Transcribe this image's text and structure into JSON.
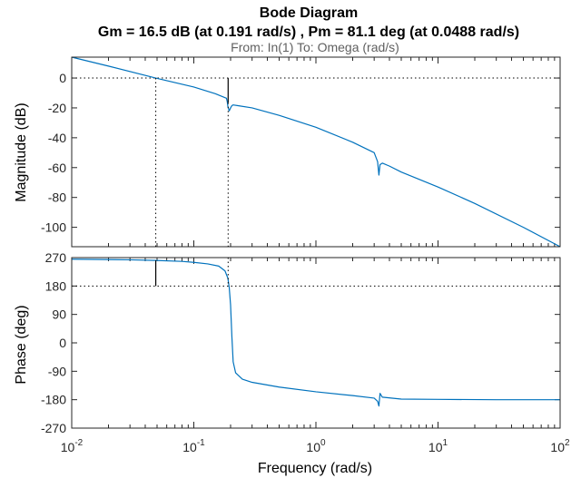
{
  "chart_data": {
    "type": "line",
    "title": "Bode Diagram",
    "subtitle": "Gm = 16.5 dB (at 0.191 rad/s) ,  Pm = 81.1 deg (at 0.0488 rad/s)",
    "io_label": "From: In(1)  To: Omega (rad/s)",
    "xlabel": "Frequency  (rad/s)",
    "x_scale": "log",
    "xlim": [
      0.01,
      100
    ],
    "x_ticks": [
      {
        "base": "10",
        "exp": "-2"
      },
      {
        "base": "10",
        "exp": "-1"
      },
      {
        "base": "10",
        "exp": "0"
      },
      {
        "base": "10",
        "exp": "1"
      },
      {
        "base": "10",
        "exp": "2"
      }
    ],
    "grid": false,
    "line_color": "#0072bd",
    "margin_line_color": "#000000",
    "panels": [
      {
        "name": "magnitude",
        "ylabel": "Magnitude (dB)",
        "ylim": [
          -113,
          14
        ],
        "y_ticks": [
          "0",
          "-20",
          "-40",
          "-60",
          "-80",
          "-100"
        ],
        "reference_y": 0,
        "margin_marker": {
          "x": 0.191,
          "y_from": -16.5,
          "y_to": 0
        },
        "curve": {
          "x": [
            0.01,
            0.02,
            0.0488,
            0.1,
            0.15,
            0.185,
            0.188,
            0.19,
            0.195,
            0.2,
            0.205,
            0.21,
            0.23,
            0.3,
            0.5,
            1,
            2,
            3,
            3.2,
            3.28,
            3.35,
            3.5,
            4,
            5,
            10,
            20,
            50,
            100
          ],
          "y": [
            14,
            8,
            0,
            -6,
            -10.5,
            -13.5,
            -16,
            -19,
            -22,
            -20,
            -18.5,
            -18,
            -18.5,
            -20,
            -25,
            -33,
            -43,
            -50,
            -56,
            -65,
            -58,
            -57,
            -59,
            -63,
            -73,
            -84,
            -100,
            -113
          ]
        }
      },
      {
        "name": "phase",
        "ylabel": "Phase (deg)",
        "ylim": [
          -270,
          270
        ],
        "y_ticks": [
          "270",
          "180",
          "90",
          "0",
          "-90",
          "-180",
          "-270"
        ],
        "reference_y": 180,
        "margin_marker": {
          "x": 0.0488,
          "y_from": 261.1,
          "y_to": 180
        },
        "curve": {
          "x": [
            0.01,
            0.03,
            0.0488,
            0.08,
            0.1,
            0.13,
            0.16,
            0.18,
            0.19,
            0.195,
            0.2,
            0.205,
            0.21,
            0.22,
            0.25,
            0.3,
            0.5,
            1,
            2,
            3,
            3.2,
            3.28,
            3.35,
            3.5,
            5,
            10,
            30,
            100
          ],
          "y": [
            265,
            263,
            261,
            258,
            255,
            250,
            243,
            228,
            205,
            175,
            120,
            20,
            -60,
            -95,
            -115,
            -125,
            -140,
            -155,
            -167,
            -175,
            -185,
            -200,
            -160,
            -172,
            -178,
            -179,
            -180,
            -180
          ]
        }
      }
    ]
  }
}
